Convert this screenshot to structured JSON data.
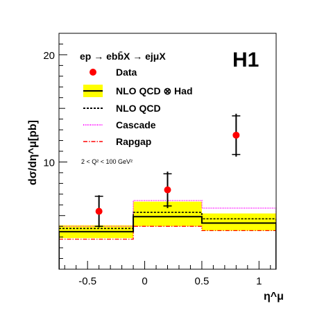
{
  "chart_data": {
    "type": "scatter",
    "process": "ep → ebb̄X → ejμX",
    "logo": "H1",
    "kinematics": "2 < Q² < 100 GeV²",
    "xlabel": "η^μ",
    "ylabel": "dσ/dη^μ[pb]",
    "xlim": [
      -0.75,
      1.15
    ],
    "ylim": [
      0,
      22
    ],
    "x_ticks": [
      "-0.5",
      "0",
      "0.5",
      "1"
    ],
    "x_tick_values": [
      -0.5,
      0,
      0.5,
      1
    ],
    "y_ticks": [
      "10",
      "20"
    ],
    "y_tick_values": [
      10,
      20
    ],
    "bin_edges": [
      -0.75,
      -0.1,
      0.5,
      1.15
    ],
    "data": {
      "name": "Data",
      "x": [
        -0.4,
        0.2,
        0.8
      ],
      "y": [
        5.4,
        7.4,
        12.5
      ],
      "stat_err": [
        1.4,
        1.5,
        1.8
      ],
      "tot_err": [
        1.5,
        1.7,
        2.0
      ]
    },
    "series": [
      {
        "name": "NLO  QCD ⊗ Had",
        "style": "band",
        "values": [
          3.5,
          4.9,
          4.3
        ],
        "band_low": [
          2.9,
          4.0,
          3.6
        ],
        "band_high": [
          4.1,
          6.3,
          5.2
        ],
        "color": "#000000",
        "band_color": "#ffff00"
      },
      {
        "name": "NLO  QCD",
        "style": "dashed",
        "values": [
          3.8,
          5.3,
          4.7
        ],
        "color": "#000000"
      },
      {
        "name": "Cascade",
        "style": "dotted",
        "values": [
          4.0,
          6.4,
          5.7
        ],
        "color": "#ff00ff"
      },
      {
        "name": "Rapgap",
        "style": "dashdot",
        "values": [
          2.8,
          4.0,
          3.6
        ],
        "color": "#ff0000"
      }
    ],
    "legend_position": "top-left",
    "grid": false,
    "colors": {
      "data_marker": "#ff0000",
      "logo": "#ff0000"
    }
  }
}
